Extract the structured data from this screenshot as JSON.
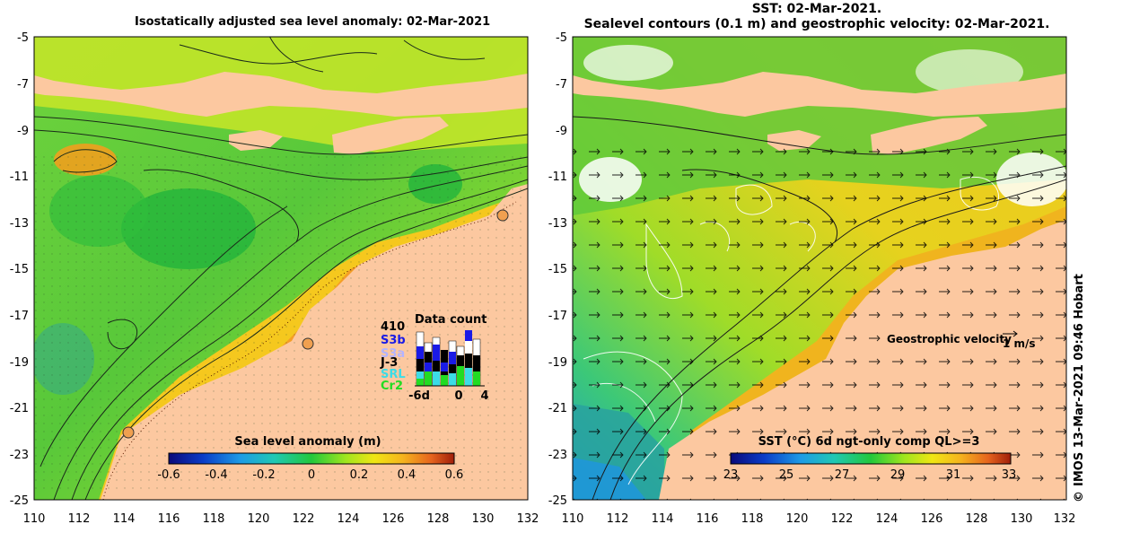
{
  "left_panel": {
    "title": "Isostatically adjusted sea level anomaly: 02-Mar-2021",
    "x_ticks": [
      "110",
      "112",
      "114",
      "116",
      "118",
      "120",
      "122",
      "124",
      "126",
      "128",
      "130",
      "132"
    ],
    "y_ticks": [
      "-5",
      "-7",
      "-9",
      "-11",
      "-13",
      "-15",
      "-17",
      "-19",
      "-21",
      "-23",
      "-25"
    ],
    "colorbar": {
      "label": "Sea level anomaly (m)",
      "ticks": [
        "-0.6",
        "-0.4",
        "-0.2",
        "0",
        "0.2",
        "0.4",
        "0.6"
      ],
      "colors": [
        "#0a0a7a",
        "#0a3cc8",
        "#1e9be6",
        "#20c8b4",
        "#22c83c",
        "#a0e61e",
        "#f0e614",
        "#f5b41e",
        "#e6641e",
        "#a01e0a"
      ]
    },
    "data_count": {
      "title": "Data count",
      "total": "410",
      "missions": [
        {
          "name": "S3b",
          "color": "#1a1ae6"
        },
        {
          "name": "S3a",
          "color": "#b4b4ff"
        },
        {
          "name": "J-3",
          "color": "#000000"
        },
        {
          "name": "SRL",
          "color": "#3cdce6"
        },
        {
          "name": "Cr2",
          "color": "#22dc22"
        }
      ],
      "x_ticks": [
        "-6d",
        "0",
        "4"
      ]
    }
  },
  "right_panel": {
    "title_line1": "SST: 02-Mar-2021.",
    "title_line2": "Sealevel contours (0.1 m) and geostrophic velocity: 02-Mar-2021.",
    "x_ticks": [
      "110",
      "112",
      "114",
      "116",
      "118",
      "120",
      "122",
      "124",
      "126",
      "128",
      "130",
      "132"
    ],
    "y_ticks": [
      "-5",
      "-7",
      "-9",
      "-11",
      "-13",
      "-15",
      "-17",
      "-19",
      "-21",
      "-23",
      "-25"
    ],
    "velocity_label": "Geostrophic velocity",
    "velocity_scale": "1 m/s",
    "colorbar": {
      "label": "SST (°C) 6d ngt-only comp QL>=3",
      "ticks": [
        "23",
        "25",
        "27",
        "29",
        "31",
        "33"
      ],
      "colors": [
        "#0a0a7a",
        "#0a3cc8",
        "#1e9be6",
        "#20c8b4",
        "#22c83c",
        "#a0e61e",
        "#f0e614",
        "#f5b41e",
        "#e6641e",
        "#a01e0a"
      ]
    }
  },
  "credit": "IMOS 13-Mar-2021 09:46 Hobart",
  "colors": {
    "land": "#fcc8a0",
    "shelf_sla": "#f0c814",
    "shelf_sst": "#f0b41e"
  }
}
